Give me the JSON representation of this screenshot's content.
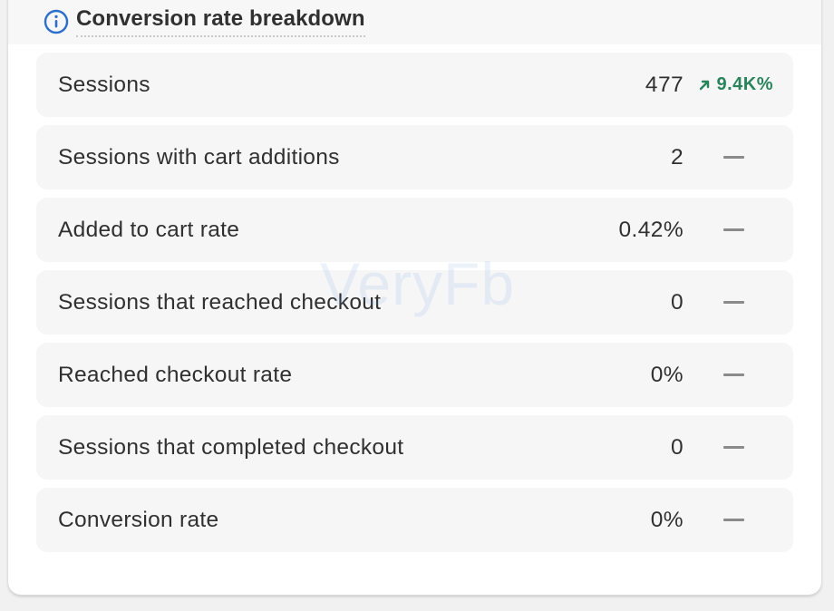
{
  "header": {
    "title": "Conversion rate breakdown",
    "icon": "info-icon",
    "icon_color": "#2c6ecb"
  },
  "rows": [
    {
      "label": "Sessions",
      "value": "477",
      "change": "9.4K%",
      "change_direction": "up",
      "change_color": "#29845a"
    },
    {
      "label": "Sessions with cart additions",
      "value": "2",
      "change": "—"
    },
    {
      "label": "Added to cart rate",
      "value": "0.42%",
      "change": "—"
    },
    {
      "label": "Sessions that reached checkout",
      "value": "0",
      "change": "—"
    },
    {
      "label": "Reached checkout rate",
      "value": "0%",
      "change": "—"
    },
    {
      "label": "Sessions that completed checkout",
      "value": "0",
      "change": "—"
    },
    {
      "label": "Conversion rate",
      "value": "0%",
      "change": "—"
    }
  ],
  "watermark": "VeryFb"
}
